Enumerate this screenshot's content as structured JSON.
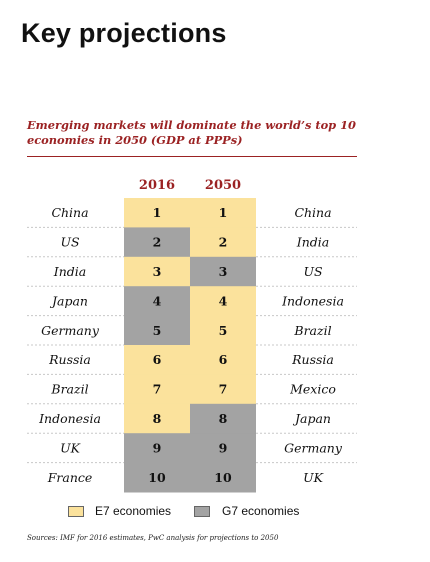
{
  "page_title": "Key projections",
  "chart_data": {
    "type": "table",
    "title": "Emerging markets will dominate the world’s top 10 economies in 2050 (GDP at PPPs)",
    "columns": [
      "2016",
      "2050"
    ],
    "rows": [
      {
        "rank": 1,
        "country_2016": "China",
        "group_2016": "E7",
        "country_2050": "China",
        "group_2050": "E7"
      },
      {
        "rank": 2,
        "country_2016": "US",
        "group_2016": "G7",
        "country_2050": "India",
        "group_2050": "E7"
      },
      {
        "rank": 3,
        "country_2016": "India",
        "group_2016": "E7",
        "country_2050": "US",
        "group_2050": "G7"
      },
      {
        "rank": 4,
        "country_2016": "Japan",
        "group_2016": "G7",
        "country_2050": "Indonesia",
        "group_2050": "E7"
      },
      {
        "rank": 5,
        "country_2016": "Germany",
        "group_2016": "G7",
        "country_2050": "Brazil",
        "group_2050": "E7"
      },
      {
        "rank": 6,
        "country_2016": "Russia",
        "group_2016": "E7",
        "country_2050": "Russia",
        "group_2050": "E7"
      },
      {
        "rank": 7,
        "country_2016": "Brazil",
        "group_2016": "E7",
        "country_2050": "Mexico",
        "group_2050": "E7"
      },
      {
        "rank": 8,
        "country_2016": "Indonesia",
        "group_2016": "E7",
        "country_2050": "Japan",
        "group_2050": "G7"
      },
      {
        "rank": 9,
        "country_2016": "UK",
        "group_2016": "G7",
        "country_2050": "Germany",
        "group_2050": "G7"
      },
      {
        "rank": 10,
        "country_2016": "France",
        "group_2016": "G7",
        "country_2050": "UK",
        "group_2050": "G7"
      }
    ],
    "legend": [
      {
        "key": "E7",
        "label": "E7 economies",
        "color": "#fbe29c"
      },
      {
        "key": "G7",
        "label": "G7 economies",
        "color": "#a3a3a3"
      }
    ],
    "source": "Sources: IMF for 2016 estimates, PwC analysis for projections to 2050"
  },
  "colors": {
    "accent": "#9b2223",
    "e7": "#fbe29c",
    "g7": "#a3a3a3",
    "rule": "#c8c8c8"
  }
}
